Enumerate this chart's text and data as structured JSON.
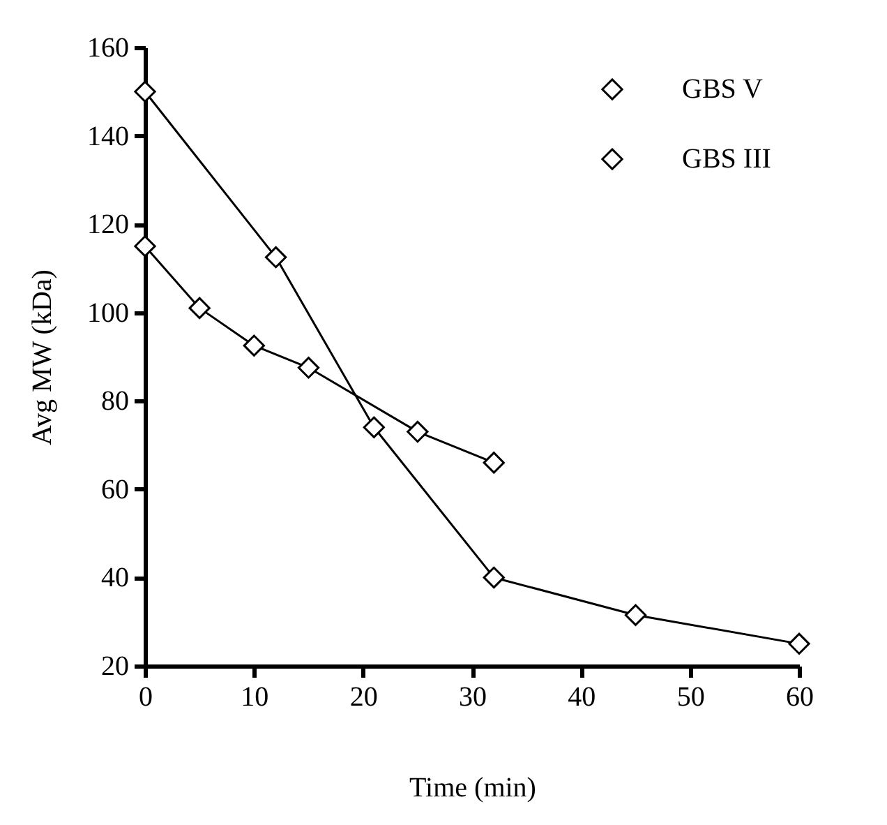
{
  "chart_data": {
    "type": "line",
    "xlabel": "Time (min)",
    "ylabel": "Avg MW (kDa)",
    "xlim": [
      0,
      60
    ],
    "xticks": [
      0,
      10,
      20,
      30,
      40,
      50,
      60
    ],
    "ylim": [
      20,
      160
    ],
    "yticks": [
      20,
      40,
      60,
      80,
      100,
      120,
      140,
      160
    ],
    "grid": false,
    "legend": "top right",
    "marker": "diamond",
    "line_style": "solid",
    "series": [
      {
        "name": "GBS V",
        "color": "#000000",
        "x": [
          0,
          12,
          21,
          32,
          45,
          60
        ],
        "values": [
          150,
          112.5,
          74,
          40,
          31.5,
          25
        ]
      },
      {
        "name": "GBS III",
        "color": "#000000",
        "x": [
          0,
          5,
          10,
          15,
          25,
          32
        ],
        "values": [
          115,
          101,
          92.5,
          87.5,
          73,
          66
        ]
      }
    ]
  }
}
